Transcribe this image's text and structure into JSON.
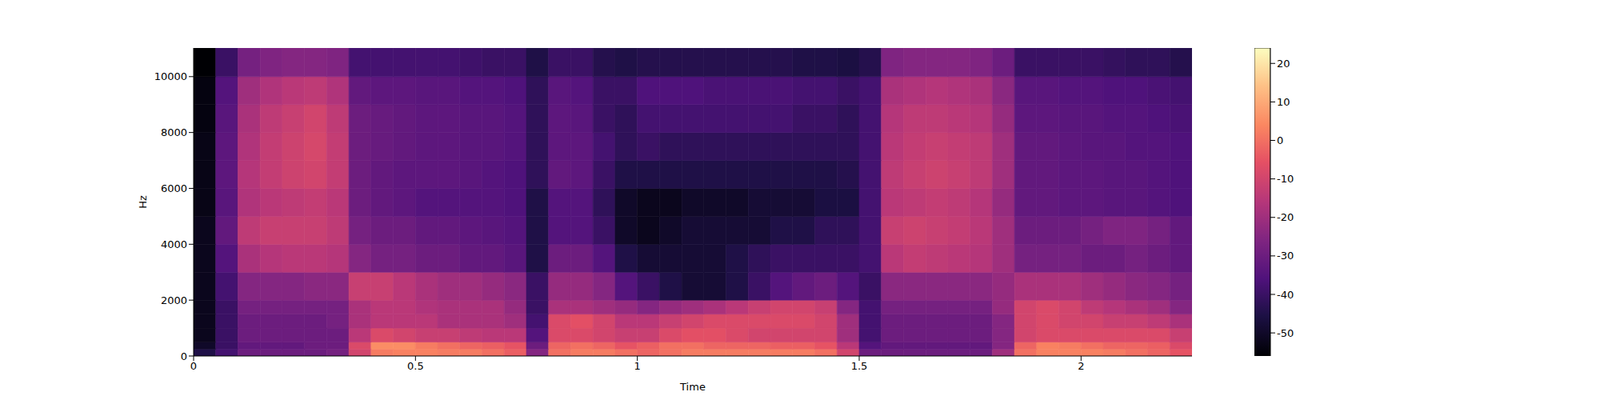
{
  "chart_data": {
    "type": "heatmap",
    "xlabel": "Time",
    "ylabel": "Hz",
    "x_edges": [
      0,
      0.05,
      0.1,
      0.15,
      0.2,
      0.25,
      0.3,
      0.35,
      0.4,
      0.45,
      0.5,
      0.55,
      0.6,
      0.65,
      0.7,
      0.75,
      0.8,
      0.85,
      0.9,
      0.95,
      1,
      1.05,
      1.1,
      1.15,
      1.2,
      1.25,
      1.3,
      1.35,
      1.4,
      1.45,
      1.5,
      1.55,
      1.6,
      1.65,
      1.7,
      1.75,
      1.8,
      1.85,
      1.9,
      1.95,
      2,
      2.05,
      2.1,
      2.15,
      2.2,
      2.25
    ],
    "y_edges": [
      0,
      250,
      500,
      1000,
      1500,
      2000,
      3000,
      4000,
      5000,
      6000,
      7000,
      8000,
      9000,
      10000,
      11025
    ],
    "cells": [
      [
        -45,
        -38,
        -30,
        -30,
        -30,
        -30,
        -28,
        -10,
        2,
        3,
        3,
        2,
        2,
        0,
        -3,
        -25,
        0,
        2,
        2,
        0,
        -2,
        0,
        2,
        2,
        2,
        2,
        2,
        2,
        0,
        -10,
        -30,
        -30,
        -30,
        -30,
        -30,
        -30,
        -20,
        0,
        3,
        3,
        3,
        2,
        0,
        -2,
        -5
      ],
      [
        -50,
        -40,
        -32,
        -32,
        -32,
        -30,
        -30,
        -8,
        5,
        5,
        2,
        0,
        -2,
        -3,
        -5,
        -30,
        -2,
        0,
        -2,
        -5,
        -3,
        0,
        0,
        -2,
        -2,
        -2,
        -3,
        -3,
        -5,
        -15,
        -35,
        -32,
        -32,
        -32,
        -32,
        -32,
        -25,
        -2,
        3,
        2,
        0,
        -2,
        -2,
        -3,
        -8
      ],
      [
        -52,
        -40,
        -30,
        -30,
        -30,
        -30,
        -30,
        -15,
        -8,
        -10,
        -12,
        -12,
        -14,
        -15,
        -15,
        -35,
        -8,
        -8,
        -10,
        -12,
        -12,
        -8,
        -6,
        -6,
        -8,
        -10,
        -10,
        -10,
        -10,
        -20,
        -38,
        -30,
        -30,
        -30,
        -30,
        -30,
        -25,
        -10,
        -8,
        -8,
        -8,
        -8,
        -8,
        -8,
        -12
      ],
      [
        -52,
        -40,
        -30,
        -30,
        -30,
        -30,
        -28,
        -18,
        -15,
        -15,
        -15,
        -18,
        -18,
        -18,
        -20,
        -38,
        -8,
        -6,
        -10,
        -15,
        -15,
        -12,
        -10,
        -8,
        -8,
        -8,
        -8,
        -8,
        -10,
        -20,
        -38,
        -30,
        -30,
        -30,
        -30,
        -30,
        -25,
        -10,
        -8,
        -10,
        -10,
        -12,
        -12,
        -14,
        -18
      ],
      [
        -52,
        -40,
        -28,
        -28,
        -28,
        -28,
        -28,
        -18,
        -15,
        -15,
        -17,
        -18,
        -18,
        -18,
        -22,
        -40,
        -18,
        -18,
        -20,
        -22,
        -25,
        -22,
        -20,
        -18,
        -15,
        -12,
        -10,
        -10,
        -12,
        -25,
        -38,
        -28,
        -28,
        -28,
        -28,
        -28,
        -22,
        -10,
        -8,
        -10,
        -14,
        -16,
        -18,
        -20,
        -25
      ],
      [
        -52,
        -38,
        -25,
        -25,
        -25,
        -24,
        -24,
        -12,
        -12,
        -15,
        -18,
        -20,
        -20,
        -22,
        -24,
        -40,
        -22,
        -22,
        -25,
        -35,
        -40,
        -45,
        -48,
        -48,
        -45,
        -40,
        -35,
        -32,
        -30,
        -35,
        -40,
        -24,
        -24,
        -24,
        -24,
        -24,
        -22,
        -18,
        -18,
        -18,
        -20,
        -22,
        -24,
        -25,
        -28
      ],
      [
        -52,
        -35,
        -18,
        -16,
        -15,
        -15,
        -16,
        -25,
        -28,
        -28,
        -30,
        -30,
        -32,
        -32,
        -34,
        -45,
        -30,
        -30,
        -35,
        -45,
        -48,
        -48,
        -48,
        -48,
        -45,
        -42,
        -40,
        -40,
        -40,
        -40,
        -38,
        -15,
        -13,
        -14,
        -15,
        -16,
        -20,
        -28,
        -28,
        -28,
        -30,
        -30,
        -28,
        -30,
        -32
      ],
      [
        -52,
        -32,
        -14,
        -12,
        -12,
        -12,
        -14,
        -28,
        -30,
        -30,
        -32,
        -32,
        -33,
        -34,
        -35,
        -45,
        -35,
        -35,
        -40,
        -50,
        -52,
        -50,
        -48,
        -48,
        -48,
        -48,
        -45,
        -45,
        -42,
        -42,
        -38,
        -12,
        -11,
        -12,
        -13,
        -15,
        -20,
        -30,
        -30,
        -30,
        -28,
        -26,
        -26,
        -28,
        -32
      ],
      [
        -53,
        -34,
        -17,
        -15,
        -14,
        -13,
        -15,
        -30,
        -32,
        -33,
        -35,
        -35,
        -35,
        -35,
        -36,
        -45,
        -35,
        -35,
        -42,
        -50,
        -52,
        -52,
        -50,
        -50,
        -50,
        -48,
        -48,
        -48,
        -46,
        -46,
        -38,
        -15,
        -14,
        -13,
        -14,
        -16,
        -22,
        -32,
        -32,
        -33,
        -33,
        -34,
        -34,
        -35,
        -36
      ],
      [
        -53,
        -33,
        -16,
        -13,
        -11,
        -10,
        -13,
        -30,
        -32,
        -33,
        -33,
        -33,
        -34,
        -35,
        -36,
        -42,
        -32,
        -33,
        -40,
        -45,
        -45,
        -45,
        -45,
        -45,
        -45,
        -45,
        -45,
        -45,
        -45,
        -44,
        -38,
        -14,
        -12,
        -11,
        -12,
        -14,
        -20,
        -32,
        -32,
        -33,
        -33,
        -34,
        -34,
        -35,
        -36
      ],
      [
        -53,
        -33,
        -17,
        -13,
        -11,
        -9,
        -13,
        -30,
        -31,
        -32,
        -33,
        -33,
        -34,
        -34,
        -35,
        -42,
        -33,
        -33,
        -38,
        -42,
        -40,
        -42,
        -42,
        -42,
        -42,
        -42,
        -42,
        -42,
        -42,
        -42,
        -38,
        -15,
        -13,
        -12,
        -13,
        -14,
        -20,
        -32,
        -32,
        -33,
        -34,
        -34,
        -35,
        -35,
        -36
      ],
      [
        -54,
        -34,
        -18,
        -14,
        -12,
        -10,
        -14,
        -30,
        -31,
        -32,
        -33,
        -33,
        -34,
        -34,
        -35,
        -42,
        -33,
        -34,
        -40,
        -42,
        -38,
        -38,
        -38,
        -38,
        -38,
        -38,
        -38,
        -40,
        -40,
        -42,
        -38,
        -16,
        -14,
        -14,
        -15,
        -16,
        -22,
        -33,
        -33,
        -34,
        -34,
        -35,
        -35,
        -36,
        -37
      ],
      [
        -54,
        -35,
        -20,
        -17,
        -15,
        -14,
        -17,
        -32,
        -33,
        -33,
        -34,
        -34,
        -35,
        -35,
        -36,
        -42,
        -34,
        -35,
        -40,
        -40,
        -36,
        -36,
        -36,
        -37,
        -37,
        -37,
        -37,
        -38,
        -38,
        -40,
        -38,
        -18,
        -17,
        -16,
        -17,
        -18,
        -24,
        -34,
        -34,
        -35,
        -35,
        -36,
        -36,
        -37,
        -38
      ],
      [
        -56,
        -40,
        -28,
        -26,
        -25,
        -25,
        -26,
        -38,
        -38,
        -38,
        -38,
        -38,
        -39,
        -40,
        -40,
        -45,
        -40,
        -40,
        -44,
        -45,
        -44,
        -44,
        -44,
        -44,
        -44,
        -44,
        -44,
        -45,
        -45,
        -46,
        -44,
        -26,
        -25,
        -25,
        -25,
        -26,
        -30,
        -40,
        -40,
        -40,
        -40,
        -41,
        -42,
        -42,
        -44
      ]
    ],
    "xlim": [
      0,
      2.25
    ],
    "ylim": [
      0,
      11025
    ],
    "xticks": [
      0,
      0.5,
      1,
      1.5,
      2
    ],
    "yticks": [
      0,
      2000,
      4000,
      6000,
      8000,
      10000
    ],
    "colorbar_range": [
      -56,
      24
    ],
    "colorbar_ticks": [
      -50,
      -40,
      -30,
      -20,
      -10,
      0,
      10,
      20
    ]
  }
}
